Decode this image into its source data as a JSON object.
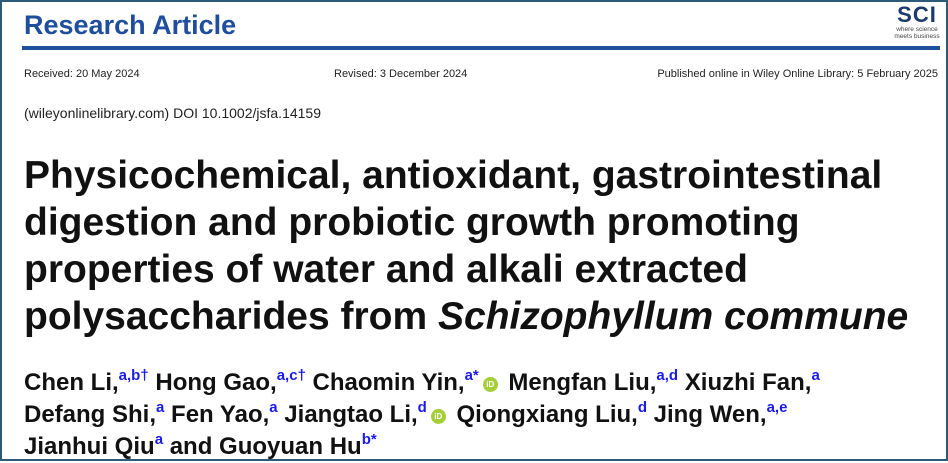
{
  "header": {
    "article_type": "Research Article",
    "logo_text": "SCI",
    "logo_tagline_1": "where science",
    "logo_tagline_2": "meets business",
    "accent": "#1f4e9c"
  },
  "dates": {
    "received": "Received: 20 May 2024",
    "revised": "Revised: 3 December 2024",
    "published": "Published online in Wiley Online Library: 5 February 2025"
  },
  "doi": "(wileyonlinelibrary.com) DOI 10.1002/jsfa.14159",
  "title": {
    "main": "Physicochemical, antioxidant, gastrointestinal digestion and probiotic growth promoting properties of water and alkali extracted polysaccharides from ",
    "species": "Schizophyllum commune"
  },
  "authors": {
    "lines": [
      [
        {
          "name": "Chen Li,",
          "sup": "a,b†"
        },
        {
          "name": "Hong Gao,",
          "sup": "a,c†"
        },
        {
          "name": "Chaomin Yin,",
          "sup": "a*",
          "orcid": true
        },
        {
          "name": "Mengfan Liu,",
          "sup": "a,d"
        },
        {
          "name": "Xiuzhi Fan,",
          "sup": "a"
        }
      ],
      [
        {
          "name": "Defang Shi,",
          "sup": "a"
        },
        {
          "name": "Fen Yao,",
          "sup": "a"
        },
        {
          "name": "Jiangtao Li,",
          "sup": "d",
          "orcid": true
        },
        {
          "name": "Qiongxiang Liu,",
          "sup": "d"
        },
        {
          "name": "Jing Wen,",
          "sup": "a,e"
        }
      ],
      [
        {
          "name": "Jianhui Qiu",
          "sup": "a"
        },
        {
          "name": "and Guoyuan Hu",
          "sup": "b*"
        }
      ]
    ],
    "orcid_label": "iD"
  }
}
